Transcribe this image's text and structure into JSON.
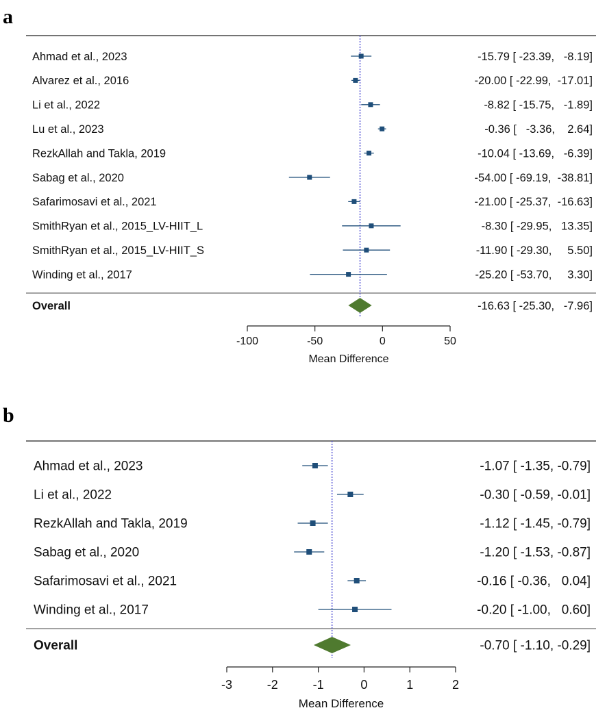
{
  "chart_data": [
    {
      "panel": "a",
      "type": "forest",
      "xlabel": "Mean Difference",
      "xlim": [
        -100,
        50
      ],
      "xticks": [
        -100,
        -50,
        0,
        50
      ],
      "overall_line": -16.63,
      "colors": {
        "marker": "#1f4e79",
        "ci": "#1f4e79",
        "diamond": "#4f7a2f",
        "refline": "#5a5ad6"
      },
      "studies": [
        {
          "name": "Ahmad et al., 2023",
          "md": -15.79,
          "lo": -23.39,
          "hi": -8.19,
          "text": "-15.79 [ -23.39,   -8.19]"
        },
        {
          "name": "Alvarez et al., 2016",
          "md": -20.0,
          "lo": -22.99,
          "hi": -17.01,
          "text": "-20.00 [ -22.99,  -17.01]"
        },
        {
          "name": "Li et al., 2022",
          "md": -8.82,
          "lo": -15.75,
          "hi": -1.89,
          "text": "-8.82 [ -15.75,   -1.89]"
        },
        {
          "name": "Lu et al., 2023",
          "md": -0.36,
          "lo": -3.36,
          "hi": 2.64,
          "text": "-0.36 [   -3.36,    2.64]"
        },
        {
          "name": "RezkAllah and Takla, 2019",
          "md": -10.04,
          "lo": -13.69,
          "hi": -6.39,
          "text": "-10.04 [ -13.69,   -6.39]"
        },
        {
          "name": "Sabag et al., 2020",
          "md": -54.0,
          "lo": -69.19,
          "hi": -38.81,
          "text": "-54.00 [ -69.19,  -38.81]"
        },
        {
          "name": "Safarimosavi et al., 2021",
          "md": -21.0,
          "lo": -25.37,
          "hi": -16.63,
          "text": "-21.00 [ -25.37,  -16.63]"
        },
        {
          "name": "SmithRyan et al., 2015_LV-HIIT_L",
          "md": -8.3,
          "lo": -29.95,
          "hi": 13.35,
          "text": "-8.30 [ -29.95,   13.35]"
        },
        {
          "name": "SmithRyan et al., 2015_LV-HIIT_S",
          "md": -11.9,
          "lo": -29.3,
          "hi": 5.5,
          "text": "-11.90 [ -29.30,     5.50]"
        },
        {
          "name": "Winding et al., 2017",
          "md": -25.2,
          "lo": -53.7,
          "hi": 3.3,
          "text": "-25.20 [ -53.70,     3.30]"
        }
      ],
      "overall": {
        "name": "Overall",
        "md": -16.63,
        "lo": -25.3,
        "hi": -7.96,
        "text": "-16.63 [ -25.30,   -7.96]"
      }
    },
    {
      "panel": "b",
      "type": "forest",
      "xlabel": "Mean Difference",
      "xlim": [
        -3,
        2
      ],
      "xticks": [
        -3,
        -2,
        -1,
        0,
        1,
        2
      ],
      "overall_line": -0.7,
      "colors": {
        "marker": "#1f4e79",
        "ci": "#1f4e79",
        "diamond": "#4f7a2f",
        "refline": "#5a5ad6"
      },
      "studies": [
        {
          "name": "Ahmad et al., 2023",
          "md": -1.07,
          "lo": -1.35,
          "hi": -0.79,
          "text": "-1.07 [ -1.35, -0.79]"
        },
        {
          "name": "Li et al., 2022",
          "md": -0.3,
          "lo": -0.59,
          "hi": -0.01,
          "text": "-0.30 [ -0.59, -0.01]"
        },
        {
          "name": "RezkAllah and Takla, 2019",
          "md": -1.12,
          "lo": -1.45,
          "hi": -0.79,
          "text": "-1.12 [ -1.45, -0.79]"
        },
        {
          "name": "Sabag et al., 2020",
          "md": -1.2,
          "lo": -1.53,
          "hi": -0.87,
          "text": "-1.20 [ -1.53, -0.87]"
        },
        {
          "name": "Safarimosavi et al., 2021",
          "md": -0.16,
          "lo": -0.36,
          "hi": 0.04,
          "text": "-0.16 [ -0.36,   0.04]"
        },
        {
          "name": "Winding et al., 2017",
          "md": -0.2,
          "lo": -1.0,
          "hi": 0.6,
          "text": "-0.20 [ -1.00,   0.60]"
        }
      ],
      "overall": {
        "name": "Overall",
        "md": -0.7,
        "lo": -1.1,
        "hi": -0.29,
        "text": "-0.70 [ -1.10, -0.29]"
      }
    }
  ]
}
